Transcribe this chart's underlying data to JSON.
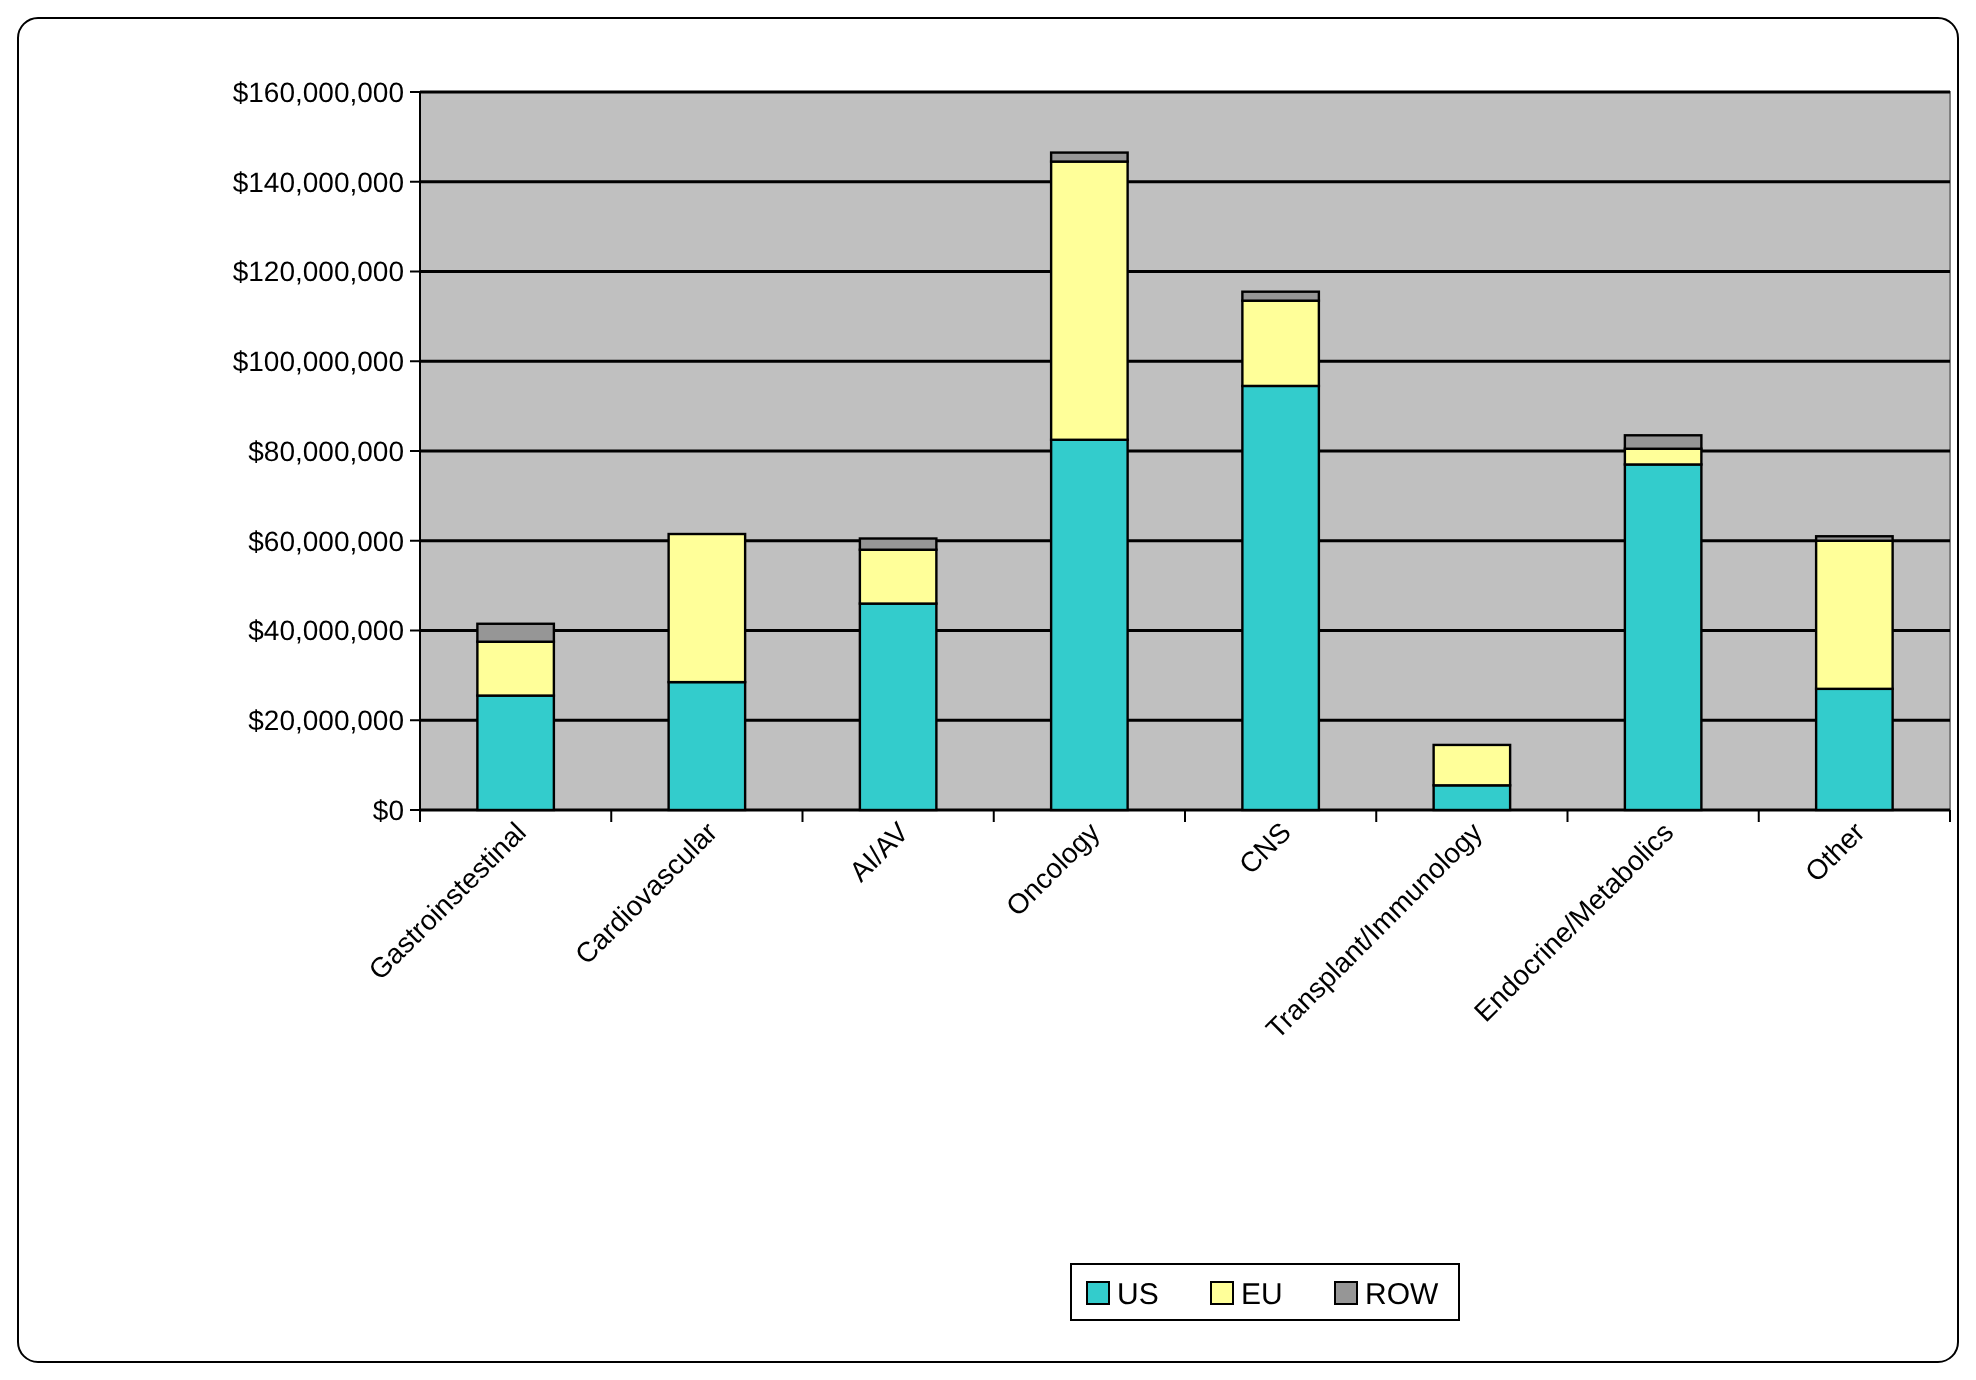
{
  "chart_data": {
    "type": "bar",
    "stacked": true,
    "categories": [
      "Gastroinstestinal",
      "Cardiovascular",
      "AI/AV",
      "Oncology",
      "CNS",
      "Transplant/Immunology",
      "Endocrine/Metabolics",
      "Other"
    ],
    "series": [
      {
        "name": "US",
        "color": "#33cccc",
        "values": [
          25500000,
          28500000,
          46000000,
          82500000,
          94500000,
          5500000,
          77000000,
          27000000
        ]
      },
      {
        "name": "EU",
        "color": "#ffff99",
        "values": [
          12000000,
          33000000,
          12000000,
          62000000,
          19000000,
          9000000,
          3500000,
          33000000
        ]
      },
      {
        "name": "ROW",
        "color": "#969696",
        "values": [
          4000000,
          0,
          2500000,
          2000000,
          2000000,
          0,
          3000000,
          1000000
        ]
      }
    ],
    "ylim": [
      0,
      160000000
    ],
    "yticks": [
      {
        "value": 0,
        "label": "$0"
      },
      {
        "value": 20000000,
        "label": "$20,000,000"
      },
      {
        "value": 40000000,
        "label": "$40,000,000"
      },
      {
        "value": 60000000,
        "label": "$60,000,000"
      },
      {
        "value": 80000000,
        "label": "$80,000,000"
      },
      {
        "value": 100000000,
        "label": "$100,000,000"
      },
      {
        "value": 120000000,
        "label": "$120,000,000"
      },
      {
        "value": 140000000,
        "label": "$140,000,000"
      },
      {
        "value": 160000000,
        "label": "$160,000,000"
      }
    ],
    "grid": "y",
    "legend": "bottom"
  }
}
